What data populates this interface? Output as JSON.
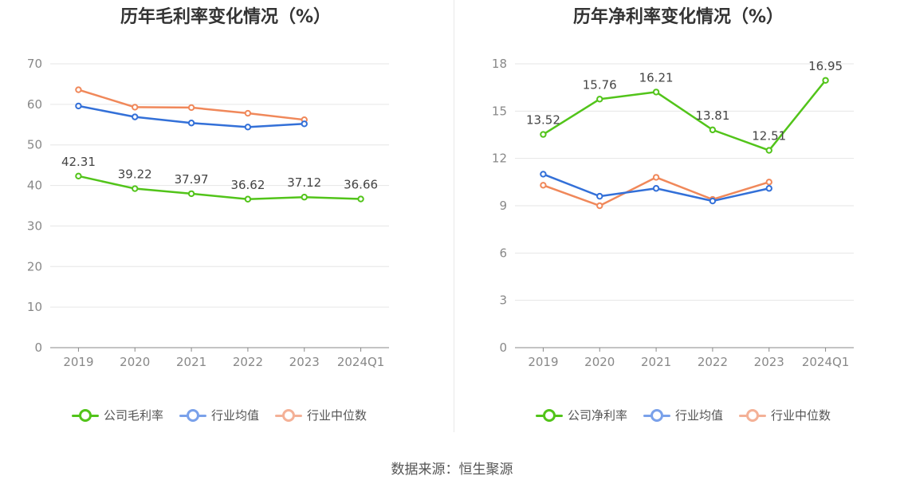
{
  "colors": {
    "company": "#52c41a",
    "average": "#3370d8",
    "median": "#f0885a",
    "legend_average": "#7aa1ea",
    "legend_median": "#f4b197",
    "grid": "#e6e6e6",
    "axis": "#888888"
  },
  "source": "数据来源：恒生聚源",
  "chart_data": [
    {
      "type": "line",
      "title": "历年毛利率变化情况（%）",
      "categories": [
        "2019",
        "2020",
        "2021",
        "2022",
        "2023",
        "2024Q1"
      ],
      "ylim": [
        0,
        70
      ],
      "yticks": [
        0,
        10,
        20,
        30,
        40,
        50,
        60,
        70
      ],
      "grid": true,
      "legend_position": "bottom",
      "series": [
        {
          "name": "公司毛利率",
          "key": "company",
          "values": [
            42.31,
            39.22,
            37.97,
            36.62,
            37.12,
            36.66
          ],
          "labels": [
            "42.31",
            "39.22",
            "37.97",
            "36.62",
            "37.12",
            "36.66"
          ]
        },
        {
          "name": "行业均值",
          "key": "average",
          "values": [
            59.6,
            56.9,
            55.4,
            54.4,
            55.2,
            null
          ]
        },
        {
          "name": "行业中位数",
          "key": "median",
          "values": [
            63.6,
            59.3,
            59.2,
            57.8,
            56.2,
            null
          ]
        }
      ]
    },
    {
      "type": "line",
      "title": "历年净利率变化情况（%）",
      "categories": [
        "2019",
        "2020",
        "2021",
        "2022",
        "2023",
        "2024Q1"
      ],
      "ylim": [
        0,
        18
      ],
      "yticks": [
        0,
        3,
        6,
        9,
        12,
        15,
        18
      ],
      "grid": true,
      "legend_position": "bottom",
      "series": [
        {
          "name": "公司净利率",
          "key": "company",
          "values": [
            13.52,
            15.76,
            16.21,
            13.81,
            12.51,
            16.95
          ],
          "labels": [
            "13.52",
            "15.76",
            "16.21",
            "13.81",
            "12.51",
            "16.95"
          ]
        },
        {
          "name": "行业均值",
          "key": "average",
          "values": [
            11.0,
            9.6,
            10.1,
            9.3,
            10.1,
            null
          ]
        },
        {
          "name": "行业中位数",
          "key": "median",
          "values": [
            10.3,
            9.0,
            10.8,
            9.4,
            10.5,
            null
          ]
        }
      ]
    }
  ]
}
